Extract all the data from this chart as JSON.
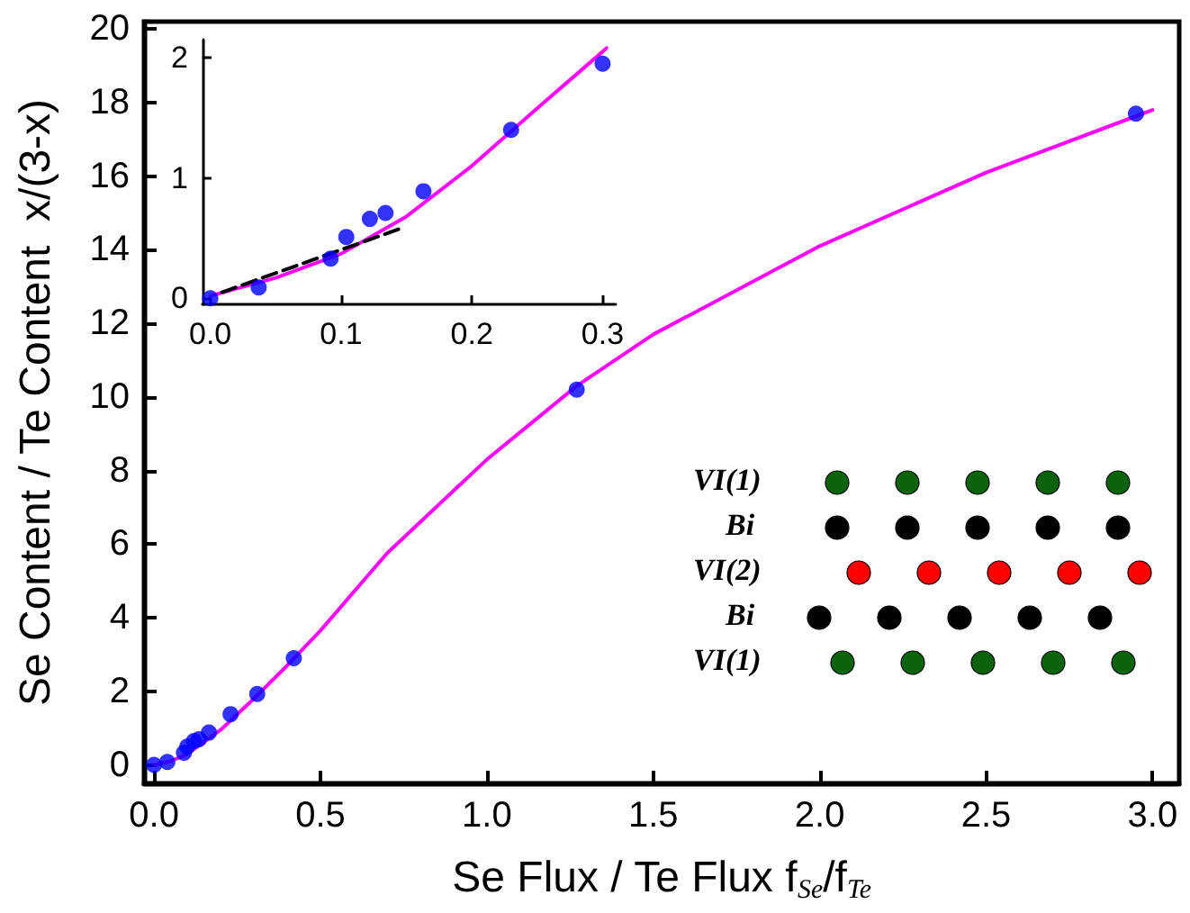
{
  "chart_data": [
    {
      "type": "scatter",
      "xlabel": "Se Flux / Te Flux f$_{Se}$/f$_{Te}$",
      "ylabel": "Se Content / Te Content  x/(3-x)",
      "xlim": [
        -0.03,
        3.08
      ],
      "ylim": [
        -0.5,
        20.2
      ],
      "xticks": [
        {
          "value": 0,
          "label": "0.0"
        },
        {
          "value": 0.5,
          "label": "0.5"
        },
        {
          "value": 1,
          "label": "1.0"
        },
        {
          "value": 1.5,
          "label": "1.5"
        },
        {
          "value": 2,
          "label": "2.0"
        },
        {
          "value": 2.5,
          "label": "2.5"
        },
        {
          "value": 3,
          "label": "3.0"
        }
      ],
      "yticks": [
        0,
        2,
        4,
        6,
        8,
        10,
        12,
        14,
        16,
        18,
        20
      ],
      "grid": false,
      "series": [
        {
          "type": "line",
          "color": "#ff00ff",
          "marker": "none",
          "line_style": "solid",
          "x": [
            0,
            0.05,
            0.1,
            0.2,
            0.3,
            0.4,
            0.5,
            0.7,
            1.0,
            1.27,
            1.5,
            2.0,
            2.5,
            3.0
          ],
          "values": [
            0,
            0.1,
            0.3,
            0.95,
            1.8,
            2.7,
            3.65,
            5.75,
            8.3,
            10.3,
            11.7,
            14.1,
            16.1,
            17.8
          ]
        },
        {
          "color": "#0000ff",
          "marker": "circle",
          "x": [
            0,
            0.04,
            0.09,
            0.1,
            0.12,
            0.135,
            0.165,
            0.23,
            0.31,
            0.42,
            1.27,
            2.95
          ],
          "values": [
            0,
            0.08,
            0.33,
            0.5,
            0.65,
            0.7,
            0.88,
            1.38,
            1.93,
            2.9,
            10.2,
            17.7
          ]
        }
      ],
      "annotations": [
        "VI(1)",
        "Bi",
        "VI(2)",
        "Bi",
        "VI(1)"
      ]
    },
    {
      "type": "scatter",
      "xlim": [
        -0.006,
        0.31
      ],
      "ylim": [
        -0.05,
        2.15
      ],
      "xticks": [
        {
          "value": 0,
          "label": "0.0"
        },
        {
          "value": 0.1,
          "label": "0.1"
        },
        {
          "value": 0.2,
          "label": "0.2"
        },
        {
          "value": 0.3,
          "label": "0.3"
        }
      ],
      "yticks": [
        0,
        1,
        2
      ],
      "grid": false,
      "series": [
        {
          "type": "line",
          "color": "#ff00ff",
          "marker": "none",
          "line_style": "solid",
          "x": [
            0,
            0.05,
            0.1,
            0.15,
            0.2,
            0.25,
            0.3,
            0.303
          ],
          "values": [
            0.02,
            0.17,
            0.37,
            0.68,
            1.1,
            1.58,
            2.05,
            2.08
          ]
        },
        {
          "type": "line",
          "color": "#000000",
          "marker": "none",
          "line_style": "dashed",
          "x": [
            0.009,
            0.148
          ],
          "values": [
            0.05,
            0.59
          ]
        },
        {
          "color": "#0000ff",
          "marker": "circle",
          "x": [
            0,
            0.037,
            0.092,
            0.104,
            0.122,
            0.134,
            0.163,
            0.23,
            0.3
          ],
          "values": [
            0,
            0.09,
            0.33,
            0.51,
            0.66,
            0.71,
            0.89,
            1.4,
            1.95
          ]
        }
      ]
    }
  ]
}
